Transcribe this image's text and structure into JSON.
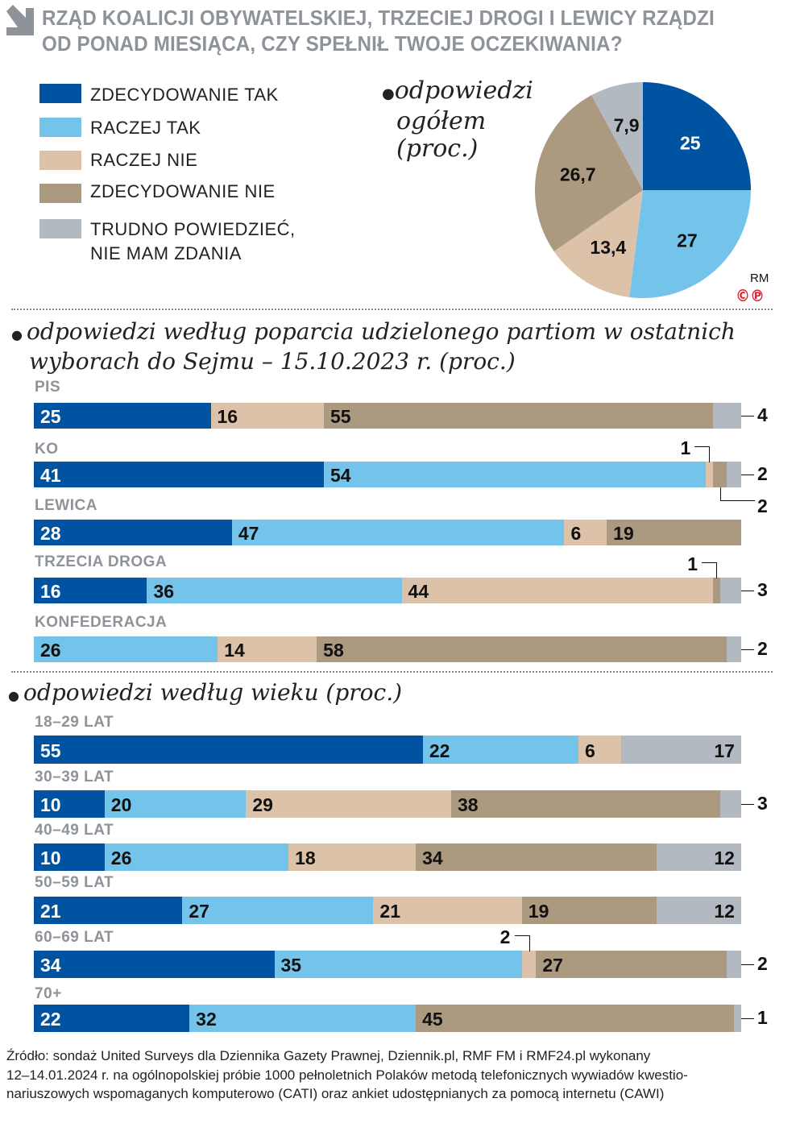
{
  "title": [
    "RZĄD KOALICJI OBYWATELSKIEJ, TRZECIEJ DROGI I LEWICY RZĄDZI",
    "OD PONAD MIESIĄCA, CZY SPEŁNIŁ TWOJE OCZEKIWANIA?"
  ],
  "colors": {
    "zdecydowanie_tak": "#0053a0",
    "raczej_tak": "#73c3ea",
    "raczej_nie": "#dcc2a8",
    "zdecydowanie_nie": "#ab9a80",
    "trudno": "#b2b9c1"
  },
  "legend": [
    "ZDECYDOWANIE TAK",
    "RACZEJ TAK",
    "RACZEJ NIE",
    "ZDECYDOWANIE NIE",
    "TRUDNO POWIEDZIEĆ,",
    "NIE MAM ZDANIA"
  ],
  "chart_data": [
    {
      "type": "pie",
      "title": [
        "odpowiedzi",
        "ogółem",
        "(proc.)"
      ],
      "categories": [
        "ZDECYDOWANIE TAK",
        "RACZEJ TAK",
        "RACZEJ NIE",
        "ZDECYDOWANIE NIE",
        "TRUDNO POWIEDZIEĆ, NIE MAM ZDANIA"
      ],
      "values": [
        25,
        27,
        13.4,
        26.7,
        7.9
      ],
      "labels": [
        "25",
        "27",
        "13,4",
        "26,7",
        "7,9"
      ]
    },
    {
      "type": "bar",
      "stacked": true,
      "orientation": "horizontal",
      "title": [
        "odpowiedzi według poparcia udzielonego partiom w ostatnich",
        "wyborach do Sejmu – 15.10.2023 r. (proc.)"
      ],
      "rows": [
        {
          "label": "PIS",
          "values": [
            25,
            0,
            16,
            55,
            4
          ]
        },
        {
          "label": "KO",
          "values": [
            41,
            54,
            1,
            2,
            2
          ]
        },
        {
          "label": "LEWICA",
          "values": [
            28,
            47,
            6,
            19,
            0
          ]
        },
        {
          "label": "TRZECIA DROGA",
          "values": [
            16,
            36,
            44,
            1,
            3
          ]
        },
        {
          "label": "KONFEDERACJA",
          "values": [
            0,
            26,
            14,
            58,
            2
          ]
        }
      ]
    },
    {
      "type": "bar",
      "stacked": true,
      "orientation": "horizontal",
      "title": [
        "odpowiedzi według wieku (proc.)"
      ],
      "rows": [
        {
          "label": "18–29 LAT",
          "values": [
            55,
            22,
            6,
            0,
            17
          ]
        },
        {
          "label": "30–39 LAT",
          "values": [
            10,
            20,
            29,
            38,
            3
          ]
        },
        {
          "label": "40–49 LAT",
          "values": [
            10,
            26,
            18,
            34,
            12
          ]
        },
        {
          "label": "50–59 LAT",
          "values": [
            21,
            27,
            21,
            19,
            12
          ]
        },
        {
          "label": "60–69 LAT",
          "values": [
            34,
            35,
            2,
            27,
            2
          ]
        },
        {
          "label": "70+",
          "values": [
            22,
            32,
            0,
            45,
            1
          ]
        }
      ]
    }
  ],
  "credit": "RM",
  "logo_marks": [
    "©",
    "℗"
  ],
  "source": [
    "Źródło: sondaż United Surveys dla Dziennika Gazety Prawnej, Dziennik.pl, RMF FM i RMF24.pl wykonany",
    "12–14.01.2024 r. na ogólnopolskiej próbie 1000 pełnoletnich Polaków metodą telefonicznych wywiadów kwestio-",
    "nariuszowych wspomaganych komputerowo (CATI) oraz ankiet udostępnianych za pomocą internetu (CAWI)"
  ]
}
